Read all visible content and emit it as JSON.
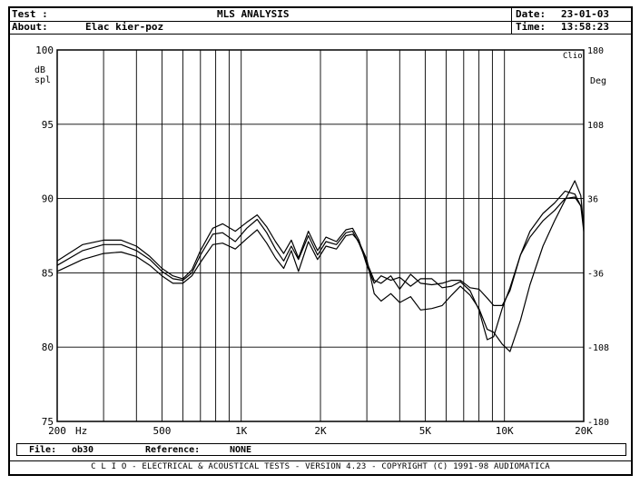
{
  "header": {
    "test_label": "Test :",
    "title": "MLS ANALYSIS",
    "date_label": "Date:",
    "date_value": "23-01-03",
    "about_label": "About:",
    "about_value": "Elac kier-poz",
    "time_label": "Time:",
    "time_value": "13:58:23"
  },
  "footer": {
    "file_label": "File:",
    "file_value": "ob30",
    "reference_label": "Reference:",
    "reference_value": "NONE",
    "copyright": "C L I O  -  ELECTRICAL & ACOUSTICAL TESTS  -  VERSION 4.23  -  COPYRIGHT (C) 1991-98 AUDIOMATICA"
  },
  "chart_data": {
    "type": "line",
    "title": "MLS ANALYSIS",
    "xlabel": "Hz",
    "ylabel": "dB spl",
    "y2label": "Deg",
    "corner_label": "Clio",
    "xscale": "log",
    "xlim": [
      200,
      20000
    ],
    "ylim": [
      75,
      100
    ],
    "y2lim": [
      -180,
      180
    ],
    "grid": true,
    "x_ticks": [
      {
        "value": 200,
        "label": "200"
      },
      {
        "value": 500,
        "label": "500"
      },
      {
        "value": 1000,
        "label": "1K"
      },
      {
        "value": 2000,
        "label": "2K"
      },
      {
        "value": 5000,
        "label": "5K"
      },
      {
        "value": 10000,
        "label": "10K"
      },
      {
        "value": 20000,
        "label": "20K"
      }
    ],
    "y_ticks": [
      {
        "value": 75,
        "label": "75"
      },
      {
        "value": 80,
        "label": "80"
      },
      {
        "value": 85,
        "label": "85"
      },
      {
        "value": 90,
        "label": "90"
      },
      {
        "value": 95,
        "label": "95"
      },
      {
        "value": 100,
        "label": "100"
      }
    ],
    "y2_ticks": [
      {
        "value": -180,
        "label": "-180"
      },
      {
        "value": -108,
        "label": "-108"
      },
      {
        "value": -36,
        "label": "-36"
      },
      {
        "value": 36,
        "label": "36"
      },
      {
        "value": 108,
        "label": "108"
      },
      {
        "value": 180,
        "label": "180"
      }
    ],
    "series": [
      {
        "values": [
          [
            200,
            85.8
          ],
          [
            250,
            86.9
          ],
          [
            300,
            87.2
          ],
          [
            350,
            87.2
          ],
          [
            400,
            86.8
          ],
          [
            450,
            86.1
          ],
          [
            500,
            85.3
          ],
          [
            550,
            84.8
          ],
          [
            600,
            84.6
          ],
          [
            650,
            85.2
          ],
          [
            700,
            86.5
          ],
          [
            780,
            88.0
          ],
          [
            850,
            88.3
          ],
          [
            950,
            87.8
          ],
          [
            1050,
            88.4
          ],
          [
            1150,
            88.9
          ],
          [
            1250,
            88.1
          ],
          [
            1350,
            87.1
          ],
          [
            1450,
            86.3
          ],
          [
            1550,
            87.2
          ],
          [
            1650,
            86.0
          ],
          [
            1800,
            87.8
          ],
          [
            1950,
            86.5
          ],
          [
            2100,
            87.4
          ],
          [
            2300,
            87.1
          ],
          [
            2500,
            87.9
          ],
          [
            2650,
            88.0
          ],
          [
            2800,
            87.2
          ],
          [
            3000,
            85.5
          ],
          [
            3200,
            84.3
          ],
          [
            3400,
            84.8
          ],
          [
            3700,
            84.5
          ],
          [
            4000,
            84.7
          ],
          [
            4400,
            84.1
          ],
          [
            4800,
            84.6
          ],
          [
            5300,
            84.6
          ],
          [
            5800,
            84.0
          ],
          [
            6300,
            84.1
          ],
          [
            6800,
            84.4
          ],
          [
            7400,
            83.8
          ],
          [
            8000,
            82.5
          ],
          [
            8600,
            80.5
          ],
          [
            9100,
            80.7
          ],
          [
            9800,
            82.6
          ],
          [
            10500,
            84.0
          ],
          [
            11500,
            86.2
          ],
          [
            12500,
            87.4
          ],
          [
            14000,
            88.5
          ],
          [
            15500,
            89.2
          ],
          [
            17000,
            90.0
          ],
          [
            18500,
            90.1
          ],
          [
            19500,
            89.5
          ],
          [
            20000,
            88.4
          ]
        ]
      },
      {
        "values": [
          [
            200,
            85.5
          ],
          [
            250,
            86.5
          ],
          [
            300,
            86.9
          ],
          [
            350,
            86.9
          ],
          [
            400,
            86.5
          ],
          [
            450,
            85.9
          ],
          [
            500,
            85.1
          ],
          [
            550,
            84.6
          ],
          [
            600,
            84.5
          ],
          [
            650,
            85.0
          ],
          [
            700,
            86.2
          ],
          [
            780,
            87.6
          ],
          [
            850,
            87.7
          ],
          [
            950,
            87.1
          ],
          [
            1050,
            88.0
          ],
          [
            1150,
            88.6
          ],
          [
            1250,
            87.7
          ],
          [
            1350,
            86.6
          ],
          [
            1450,
            85.8
          ],
          [
            1550,
            86.8
          ],
          [
            1650,
            85.9
          ],
          [
            1800,
            87.5
          ],
          [
            1950,
            86.2
          ],
          [
            2100,
            87.1
          ],
          [
            2300,
            86.9
          ],
          [
            2500,
            87.7
          ],
          [
            2650,
            87.8
          ],
          [
            2800,
            87.0
          ],
          [
            3000,
            85.7
          ],
          [
            3200,
            84.5
          ],
          [
            3400,
            84.3
          ],
          [
            3700,
            84.8
          ],
          [
            4000,
            83.9
          ],
          [
            4400,
            84.9
          ],
          [
            4800,
            84.3
          ],
          [
            5300,
            84.2
          ],
          [
            5800,
            84.3
          ],
          [
            6300,
            84.5
          ],
          [
            6800,
            84.5
          ],
          [
            7400,
            84.0
          ],
          [
            8000,
            83.9
          ],
          [
            8600,
            83.3
          ],
          [
            9100,
            82.8
          ],
          [
            9800,
            82.8
          ],
          [
            10500,
            83.8
          ],
          [
            11500,
            86.2
          ],
          [
            12500,
            87.8
          ],
          [
            14000,
            89.0
          ],
          [
            15500,
            89.7
          ],
          [
            17000,
            90.5
          ],
          [
            18500,
            90.3
          ],
          [
            19500,
            89.5
          ],
          [
            20000,
            87.8
          ]
        ]
      },
      {
        "values": [
          [
            200,
            85.1
          ],
          [
            250,
            85.9
          ],
          [
            300,
            86.3
          ],
          [
            350,
            86.4
          ],
          [
            400,
            86.1
          ],
          [
            450,
            85.5
          ],
          [
            500,
            84.8
          ],
          [
            550,
            84.3
          ],
          [
            600,
            84.3
          ],
          [
            650,
            84.8
          ],
          [
            700,
            85.7
          ],
          [
            780,
            86.9
          ],
          [
            850,
            87.0
          ],
          [
            950,
            86.6
          ],
          [
            1050,
            87.3
          ],
          [
            1150,
            87.9
          ],
          [
            1250,
            87.0
          ],
          [
            1350,
            86.0
          ],
          [
            1450,
            85.3
          ],
          [
            1550,
            86.5
          ],
          [
            1650,
            85.1
          ],
          [
            1800,
            87.1
          ],
          [
            1950,
            85.9
          ],
          [
            2100,
            86.8
          ],
          [
            2300,
            86.6
          ],
          [
            2500,
            87.5
          ],
          [
            2650,
            87.6
          ],
          [
            2800,
            87.1
          ],
          [
            3000,
            85.9
          ],
          [
            3200,
            83.6
          ],
          [
            3400,
            83.1
          ],
          [
            3700,
            83.6
          ],
          [
            4000,
            83.0
          ],
          [
            4400,
            83.4
          ],
          [
            4800,
            82.5
          ],
          [
            5300,
            82.6
          ],
          [
            5800,
            82.8
          ],
          [
            6300,
            83.5
          ],
          [
            6800,
            84.1
          ],
          [
            7400,
            83.5
          ],
          [
            8000,
            82.6
          ],
          [
            8600,
            81.2
          ],
          [
            9100,
            81.0
          ],
          [
            9800,
            80.2
          ],
          [
            10500,
            79.7
          ],
          [
            11500,
            81.8
          ],
          [
            12500,
            84.2
          ],
          [
            14000,
            86.8
          ],
          [
            15500,
            88.5
          ],
          [
            17000,
            89.9
          ],
          [
            18500,
            91.2
          ],
          [
            19500,
            90.2
          ],
          [
            20000,
            88.0
          ]
        ]
      }
    ]
  }
}
